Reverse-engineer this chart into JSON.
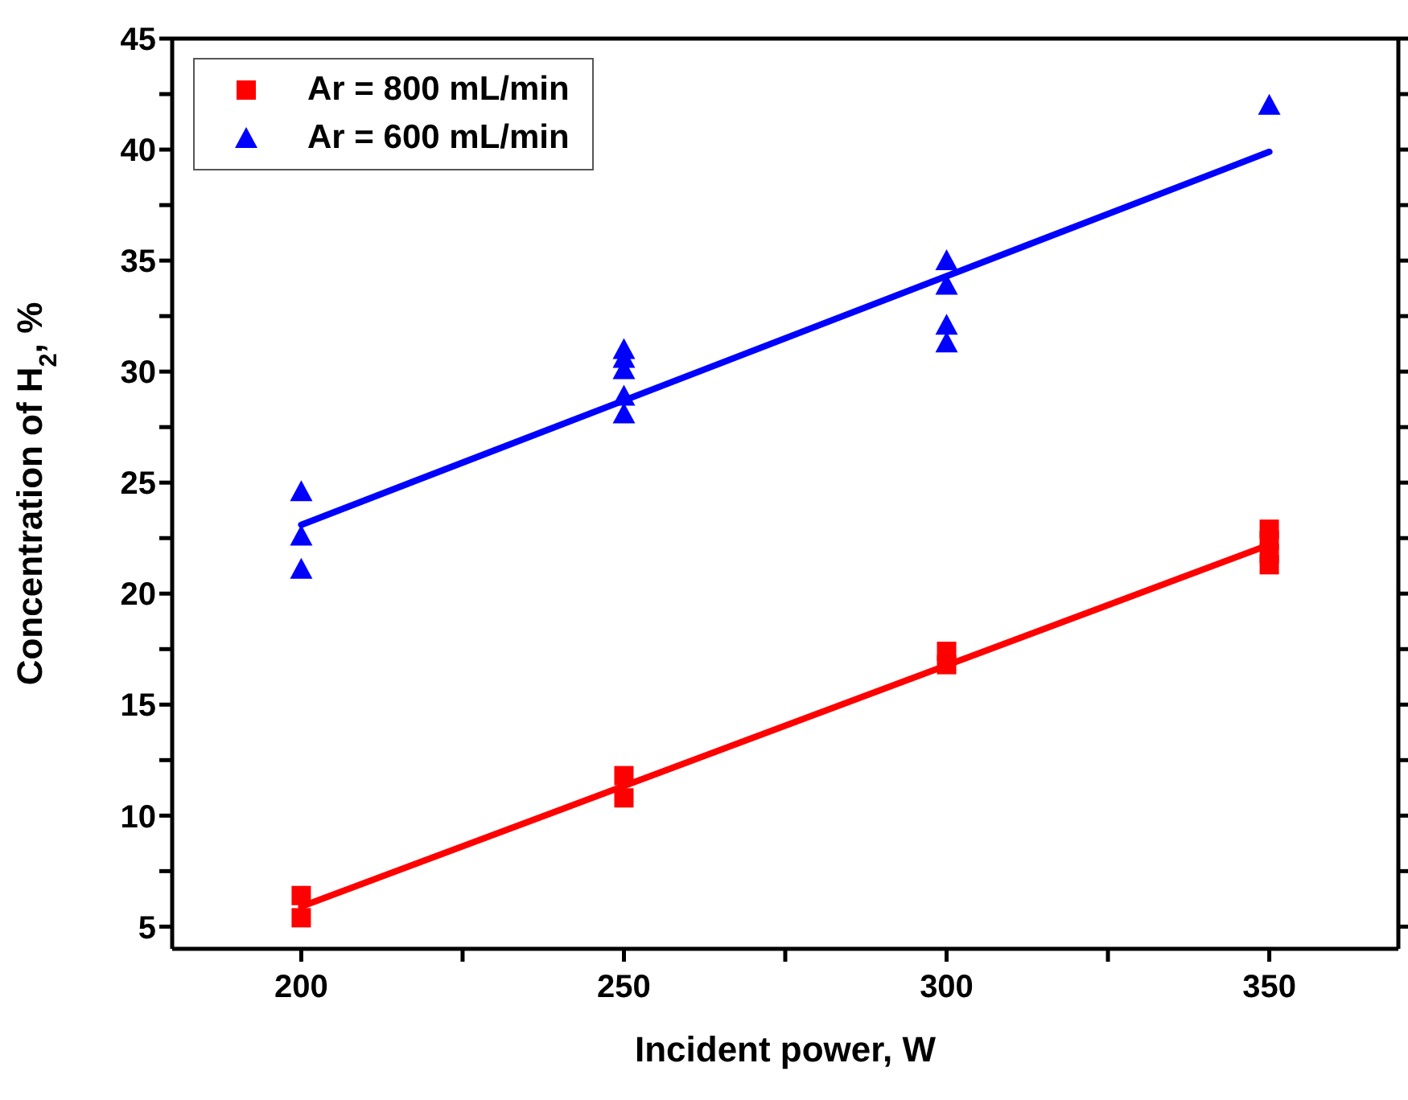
{
  "chart_data": {
    "type": "scatter",
    "xlabel": "Incident power, W",
    "ylabel": "Concentration of H$_{2}$, %",
    "xlim": [
      180,
      370
    ],
    "xticks": [
      200,
      {
        "value": 225,
        "label": null
      },
      250,
      {
        "value": 275,
        "label": null
      },
      300,
      {
        "value": 325,
        "label": null
      },
      350
    ],
    "ylim": [
      4,
      45
    ],
    "yticks": [
      5,
      {
        "value": 7.5,
        "label": null
      },
      10,
      {
        "value": 12.5,
        "label": null
      },
      15,
      {
        "value": 17.5,
        "label": null
      },
      20,
      {
        "value": 22.5,
        "label": null
      },
      25,
      {
        "value": 27.5,
        "label": null
      },
      30,
      {
        "value": 32.5,
        "label": null
      },
      35,
      {
        "value": 37.5,
        "label": null
      },
      40,
      {
        "value": 42.5,
        "label": null
      },
      45
    ],
    "grid": false,
    "legend": "top left",
    "series": [
      {
        "name": "Ar = 800 mL/min",
        "color": "#ff0000",
        "marker": "square",
        "x": [
          200,
          200,
          250,
          250,
          300,
          300,
          350,
          350,
          350,
          350
        ],
        "values": [
          5.4,
          6.4,
          10.8,
          11.8,
          16.8,
          17.4,
          21.3,
          21.8,
          22.4,
          22.9
        ]
      },
      {
        "name": "Ar = 600 mL/min",
        "color": "#0000ff",
        "marker": "triangle",
        "x": [
          200,
          200,
          200,
          250,
          250,
          250,
          250,
          250,
          300,
          300,
          300,
          300,
          350
        ],
        "values": [
          21.1,
          22.6,
          24.6,
          28.1,
          28.9,
          30.1,
          30.6,
          31.0,
          31.3,
          32.1,
          33.9,
          35.0,
          42.0
        ]
      },
      {
        "type": "line",
        "color": "#ff0000",
        "marker": "none",
        "line_style": "solid",
        "x": [
          200,
          350
        ],
        "values": [
          5.9,
          22.2
        ]
      },
      {
        "type": "line",
        "color": "#0000ff",
        "marker": "none",
        "line_style": "solid",
        "x": [
          200,
          350
        ],
        "values": [
          23.1,
          39.9
        ]
      }
    ]
  }
}
